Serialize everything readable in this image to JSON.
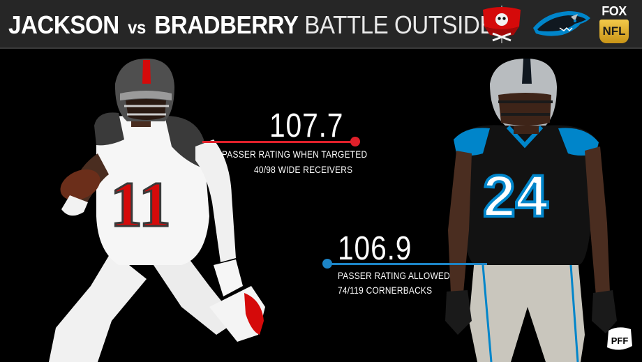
{
  "header": {
    "title_bold_1": "JACKSON",
    "title_vs": "vs",
    "title_bold_2": "BRADBERRY",
    "title_light": "BATTLE OUTSIDE"
  },
  "logos": {
    "team_left": "buccaneers-logo",
    "team_right": "panthers-logo",
    "network_top": "FOX",
    "network_bottom": "NFL",
    "watermark": "PFF"
  },
  "players": {
    "left": {
      "jersey_number": "11",
      "team_color": "#d50a0a"
    },
    "right": {
      "jersey_number": "24",
      "team_color": "#0085ca"
    }
  },
  "stats": [
    {
      "value": "107.7",
      "label": "PASSER RATING WHEN TARGETED",
      "rank": "40/98 WIDE RECEIVERS",
      "color": "#e0202a"
    },
    {
      "value": "106.9",
      "label": "PASSER RATING ALLOWED",
      "rank": "74/119 CORNERBACKS",
      "color": "#1c84c6"
    }
  ]
}
